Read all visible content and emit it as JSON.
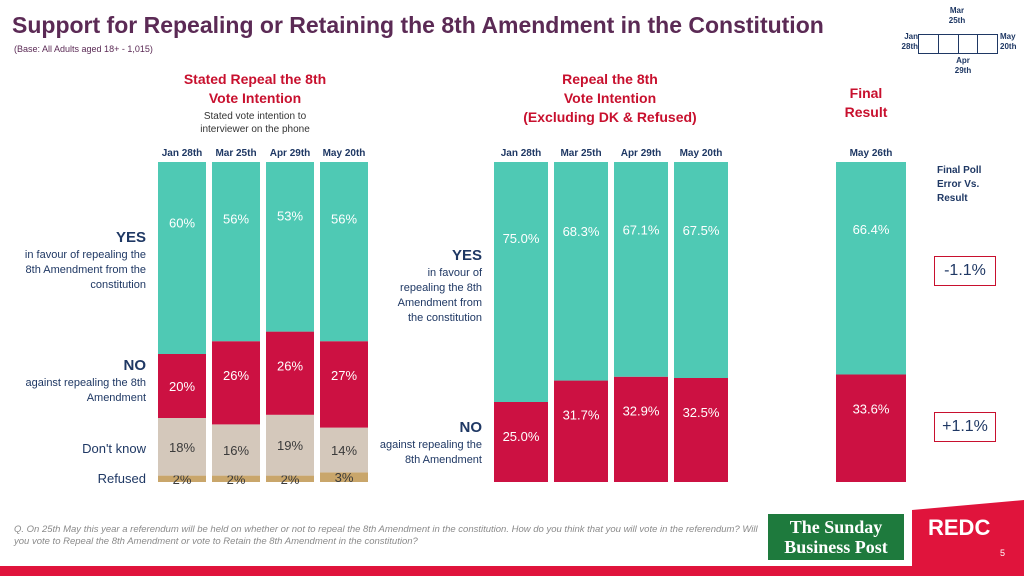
{
  "header": {
    "title": "Support for Repealing or Retaining the 8th Amendment in the Constitution",
    "base_note": "(Base: All Adults aged 18+ - 1,015)"
  },
  "timeline": {
    "jan_label": "Jan 28th",
    "mar_label": "Mar 25th",
    "apr_label": "Apr 29th",
    "may_label": "May 20th"
  },
  "section_stated": {
    "title_line1": "Stated Repeal the 8th",
    "title_line2": "Vote Intention",
    "subtitle": "Stated vote intention to interviewer on the phone"
  },
  "section_excl": {
    "title_line1": "Repeal the 8th",
    "title_line2": "Vote Intention",
    "title_line3": "(Excluding DK & Refused)"
  },
  "section_final": {
    "title_line1": "Final",
    "title_line2": "Result"
  },
  "labels": {
    "yes": "YES",
    "yes_desc_left": "in favour of repealing the 8th Amendment from the constitution",
    "no": "NO",
    "no_desc_left": "against repealing the 8th Amendment",
    "dont_know": "Don't know",
    "refused": "Refused",
    "yes_desc_mid": "in favour of repealing the 8th Amendment from the constitution",
    "no_desc_mid": "against repealing the 8th Amendment"
  },
  "final_error": {
    "heading": "Final Poll Error Vs. Result",
    "yes_error": "-1.1%",
    "no_error": "+1.1%"
  },
  "footer": {
    "question": "Q. On 25th May this year a referendum will be held on whether or not to repeal the 8th Amendment in the constitution. How do you think that you will vote in the referendum? Will you vote to Repeal the 8th Amendment or vote to Retain the 8th Amendment in the constitution?",
    "brand_line1": "The Sunday",
    "brand_line2": "Business Post",
    "redc": "REDC",
    "page": "5"
  },
  "colors": {
    "yes": "#4fc9b4",
    "no": "#cc1142",
    "dont_know": "#d4c8bb",
    "refused": "#c9a66b",
    "accent": "#c8102e"
  },
  "chart_data": [
    {
      "type": "bar",
      "stacked": true,
      "title": "Stated Repeal the 8th Vote Intention",
      "categories": [
        "Jan 28th",
        "Mar 25th",
        "Apr 29th",
        "May 20th"
      ],
      "series": [
        {
          "name": "Refused",
          "values": [
            2,
            2,
            2,
            3
          ],
          "labels": [
            "2%",
            "2%",
            "2%",
            "3%"
          ]
        },
        {
          "name": "Don't know",
          "values": [
            18,
            16,
            19,
            14
          ],
          "labels": [
            "18%",
            "16%",
            "19%",
            "14%"
          ]
        },
        {
          "name": "NO",
          "values": [
            20,
            26,
            26,
            27
          ],
          "labels": [
            "20%",
            "26%",
            "26%",
            "27%"
          ]
        },
        {
          "name": "YES",
          "values": [
            60,
            56,
            53,
            56
          ],
          "labels": [
            "60%",
            "56%",
            "53%",
            "56%"
          ]
        }
      ],
      "ylim": [
        0,
        100
      ]
    },
    {
      "type": "bar",
      "stacked": true,
      "title": "Repeal the 8th Vote Intention (Excluding DK & Refused)",
      "categories": [
        "Jan 28th",
        "Mar 25th",
        "Apr 29th",
        "May 20th"
      ],
      "series": [
        {
          "name": "NO",
          "values": [
            25.0,
            31.7,
            32.9,
            32.5
          ],
          "labels": [
            "25.0%",
            "31.7%",
            "32.9%",
            "32.5%"
          ]
        },
        {
          "name": "YES",
          "values": [
            75.0,
            68.3,
            67.1,
            67.5
          ],
          "labels": [
            "75.0%",
            "68.3%",
            "67.1%",
            "67.5%"
          ]
        }
      ],
      "ylim": [
        0,
        100
      ]
    },
    {
      "type": "bar",
      "stacked": true,
      "title": "Final Result",
      "categories": [
        "May 26th"
      ],
      "series": [
        {
          "name": "NO",
          "values": [
            33.6
          ],
          "labels": [
            "33.6%"
          ]
        },
        {
          "name": "YES",
          "values": [
            66.4
          ],
          "labels": [
            "66.4%"
          ]
        }
      ],
      "ylim": [
        0,
        100
      ]
    }
  ]
}
